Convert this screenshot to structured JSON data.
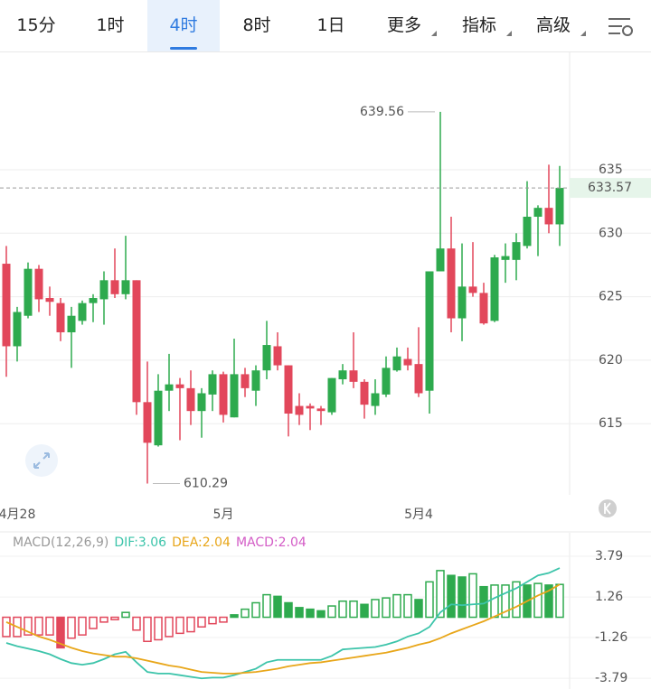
{
  "tabs": [
    {
      "label": "15分"
    },
    {
      "label": "1时"
    },
    {
      "label": "4时",
      "active": true
    },
    {
      "label": "8时"
    },
    {
      "label": "1日"
    },
    {
      "label": "更多",
      "menu": true
    },
    {
      "label": "指标",
      "menu": true
    },
    {
      "label": "高级",
      "menu": true
    }
  ],
  "chart_data": [
    {
      "type": "candlestick",
      "categories": [
        null,
        "4月28",
        null,
        null,
        null,
        null,
        null,
        null,
        null,
        null,
        null,
        null,
        null,
        null,
        null,
        null,
        null,
        null,
        null,
        null,
        "5月",
        null,
        null,
        null,
        null,
        null,
        null,
        null,
        null,
        null,
        null,
        null,
        null,
        null,
        null,
        null,
        null,
        null,
        "5月4",
        null,
        null,
        null,
        null,
        null,
        null,
        null,
        null,
        null,
        null,
        null,
        null,
        null
      ],
      "open": [
        627.6,
        621.1,
        623.5,
        627.2,
        624.9,
        624.5,
        622.2,
        623.1,
        624.5,
        624.8,
        626.3,
        625.2,
        626.3,
        616.7,
        613.3,
        617.6,
        618.1,
        617.8,
        616.0,
        617.3,
        618.9,
        615.5,
        618.9,
        617.6,
        619.2,
        621.1,
        619.6,
        616.4,
        616.4,
        616.2,
        615.9,
        618.5,
        619.2,
        618.3,
        616.4,
        617.3,
        619.2,
        620.1,
        619.7,
        617.6,
        627.0,
        628.8,
        623.3,
        625.8,
        625.3,
        623.1,
        627.9,
        627.9,
        629.0,
        631.3,
        632.0,
        630.7
      ],
      "high": [
        629.0,
        624.2,
        627.7,
        627.5,
        625.8,
        624.9,
        624.2,
        624.7,
        625.2,
        627.0,
        628.8,
        629.8,
        626.3,
        619.9,
        618.9,
        620.5,
        618.6,
        619.2,
        617.8,
        619.2,
        619.1,
        621.7,
        619.4,
        619.6,
        623.1,
        622.2,
        619.6,
        617.4,
        616.6,
        616.4,
        618.6,
        619.7,
        622.2,
        618.5,
        618.5,
        620.3,
        621.0,
        621.0,
        622.6,
        627.0,
        639.56,
        631.3,
        629.2,
        629.3,
        626.1,
        628.3,
        629.2,
        630.0,
        634.1,
        632.2,
        635.4,
        635.3
      ],
      "low": [
        618.7,
        619.9,
        623.3,
        623.8,
        623.5,
        621.5,
        619.4,
        622.8,
        623.0,
        622.8,
        624.9,
        624.8,
        615.7,
        610.29,
        613.2,
        616.0,
        613.7,
        614.9,
        613.9,
        616.0,
        615.1,
        615.5,
        617.1,
        616.4,
        618.5,
        619.2,
        614.0,
        614.9,
        614.5,
        614.9,
        615.7,
        618.1,
        617.8,
        615.4,
        615.7,
        617.1,
        619.1,
        619.2,
        617.1,
        615.8,
        627.0,
        622.2,
        621.5,
        625.0,
        622.8,
        623.0,
        626.1,
        626.3,
        628.8,
        628.2,
        630.0,
        629.0
      ],
      "close": [
        621.1,
        623.8,
        627.2,
        624.8,
        624.6,
        622.2,
        623.5,
        624.5,
        624.9,
        626.3,
        625.2,
        626.3,
        616.7,
        613.5,
        617.6,
        618.1,
        617.8,
        616.0,
        617.4,
        618.9,
        615.7,
        618.9,
        617.8,
        619.2,
        621.2,
        619.6,
        615.8,
        615.7,
        616.2,
        616.0,
        618.6,
        619.2,
        618.3,
        616.5,
        617.4,
        619.4,
        620.3,
        619.6,
        617.4,
        627.0,
        628.8,
        623.3,
        625.8,
        625.3,
        622.9,
        628.1,
        628.2,
        629.3,
        631.3,
        632.0,
        630.7,
        633.57
      ],
      "up_color": "#2eaa4e",
      "down_color": "#e2475b",
      "ylim": [
        609.4,
        644.1
      ],
      "yticks": [
        615,
        620,
        625,
        630,
        635
      ],
      "grid": true,
      "last_price_line": true
    },
    {
      "type": "macd",
      "title": "MACD(12,26,9)",
      "series": [
        {
          "name": "DIF",
          "label": "DIF:3.06",
          "color": "#3cc4aa",
          "kind": "line",
          "values": [
            -1.6,
            -1.8,
            -1.95,
            -2.1,
            -2.3,
            -2.6,
            -2.85,
            -2.95,
            -2.85,
            -2.6,
            -2.3,
            -2.15,
            -2.8,
            -3.4,
            -3.5,
            -3.5,
            -3.6,
            -3.7,
            -3.8,
            -3.75,
            -3.75,
            -3.6,
            -3.4,
            -3.2,
            -2.8,
            -2.65,
            -2.65,
            -2.65,
            -2.65,
            -2.65,
            -2.4,
            -2.0,
            -1.95,
            -1.9,
            -1.85,
            -1.7,
            -1.5,
            -1.2,
            -1.0,
            -0.6,
            0.3,
            0.8,
            0.75,
            0.8,
            0.85,
            1.2,
            1.5,
            1.8,
            2.2,
            2.6,
            2.75,
            3.06
          ]
        },
        {
          "name": "DEA",
          "label": "DEA:2.04",
          "color": "#e8a619",
          "kind": "line",
          "values": [
            -0.3,
            -0.6,
            -0.9,
            -1.2,
            -1.4,
            -1.65,
            -1.9,
            -2.1,
            -2.25,
            -2.35,
            -2.45,
            -2.45,
            -2.55,
            -2.7,
            -2.85,
            -3.0,
            -3.1,
            -3.25,
            -3.4,
            -3.45,
            -3.5,
            -3.5,
            -3.45,
            -3.4,
            -3.3,
            -3.2,
            -3.05,
            -2.95,
            -2.85,
            -2.8,
            -2.7,
            -2.6,
            -2.5,
            -2.4,
            -2.3,
            -2.2,
            -2.05,
            -1.9,
            -1.7,
            -1.55,
            -1.3,
            -1.0,
            -0.75,
            -0.5,
            -0.25,
            0.05,
            0.35,
            0.65,
            1.0,
            1.35,
            1.65,
            2.04
          ]
        },
        {
          "name": "MACD",
          "label": "MACD:2.04",
          "color": "#d35cc6",
          "kind": "bar",
          "values": [
            -1.2,
            -1.2,
            -1.1,
            -1.1,
            -1.1,
            -1.9,
            -1.3,
            -1.1,
            -0.7,
            -0.3,
            -0.15,
            0.3,
            -0.8,
            -1.5,
            -1.4,
            -1.2,
            -1.0,
            -0.9,
            -0.6,
            -0.4,
            -0.3,
            0.15,
            0.5,
            0.9,
            1.4,
            1.3,
            0.9,
            0.6,
            0.5,
            0.4,
            0.7,
            1.0,
            1.0,
            0.8,
            1.1,
            1.2,
            1.4,
            1.4,
            1.1,
            2.2,
            2.9,
            2.6,
            2.5,
            2.7,
            1.9,
            2.0,
            2.0,
            2.2,
            2.0,
            2.1,
            2.0,
            2.04
          ]
        }
      ],
      "up_color": "#2eaa4e",
      "down_color": "#e2475b",
      "ylim": [
        -4.46,
        5.25
      ],
      "yticks": [
        3.79,
        1.26,
        -1.26,
        -3.79
      ],
      "grid": true
    }
  ]
}
